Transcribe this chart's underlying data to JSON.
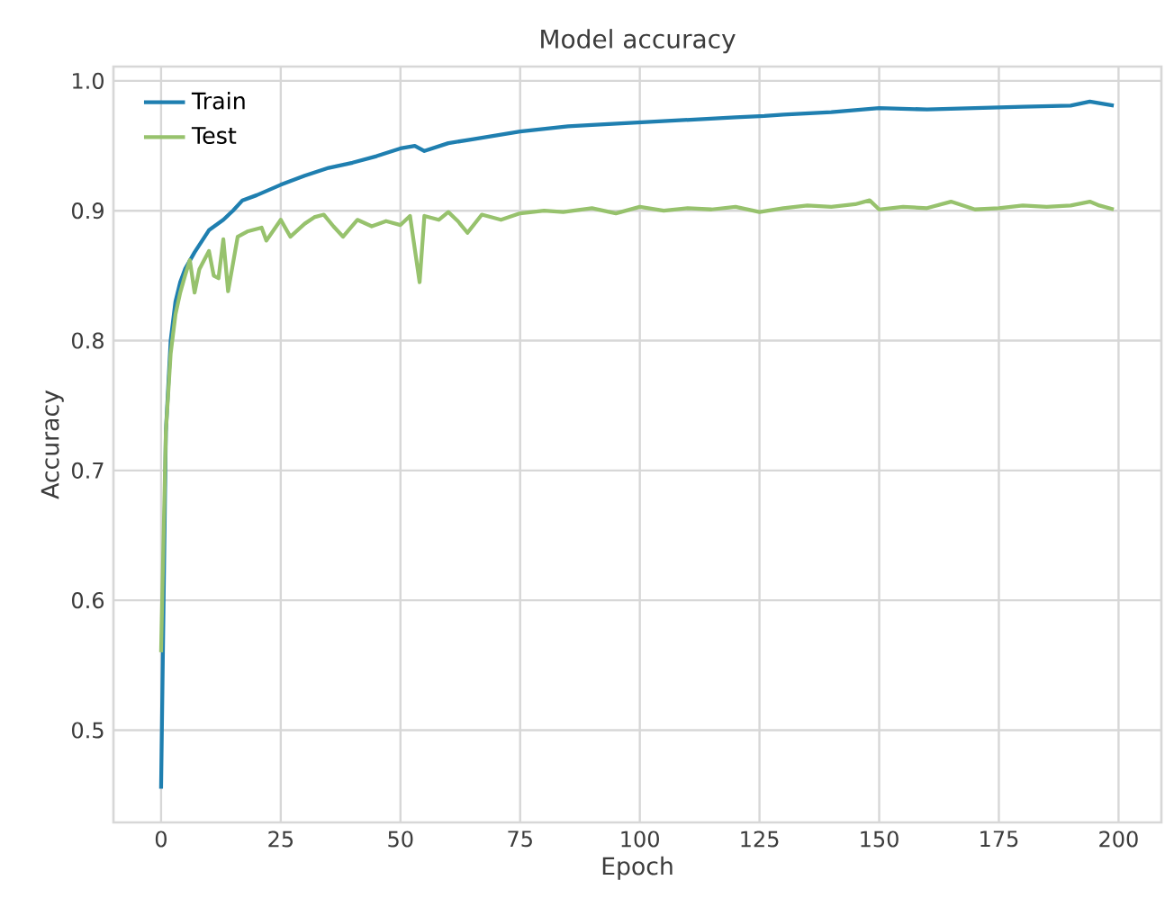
{
  "chart_data": {
    "type": "line",
    "title": "Model accuracy",
    "xlabel": "Epoch",
    "ylabel": "Accuracy",
    "xlim": [
      -9.95,
      208.95
    ],
    "ylim": [
      0.429,
      1.011
    ],
    "xticks": [
      0,
      25,
      50,
      75,
      100,
      125,
      150,
      175,
      200
    ],
    "yticks": [
      0.5,
      0.6,
      0.7,
      0.8,
      0.9,
      {
        "value": 1.0,
        "label": "1.0"
      }
    ],
    "grid": true,
    "legend": "top left",
    "marker": "none",
    "line_style": "solid",
    "series": [
      {
        "name": "Train",
        "color": "#1f7fb0",
        "x": [
          0,
          1,
          2,
          3,
          4,
          5,
          7,
          10,
          13,
          15,
          17,
          20,
          25,
          30,
          35,
          40,
          45,
          50,
          53,
          55,
          60,
          65,
          70,
          75,
          80,
          85,
          90,
          100,
          110,
          120,
          126,
          130,
          140,
          150,
          160,
          170,
          180,
          190,
          194,
          199
        ],
        "values": [
          0.455,
          0.73,
          0.8,
          0.83,
          0.845,
          0.855,
          0.868,
          0.885,
          0.893,
          0.9,
          0.908,
          0.912,
          0.92,
          0.927,
          0.933,
          0.937,
          0.942,
          0.948,
          0.95,
          0.946,
          0.952,
          0.955,
          0.958,
          0.961,
          0.963,
          0.965,
          0.966,
          0.968,
          0.97,
          0.972,
          0.973,
          0.974,
          0.976,
          0.979,
          0.978,
          0.979,
          0.98,
          0.981,
          0.984,
          0.981
        ]
      },
      {
        "name": "Test",
        "color": "#97c26d",
        "x": [
          0,
          1,
          2,
          3,
          4,
          5,
          6,
          7,
          8,
          9,
          10,
          11,
          12,
          13,
          14,
          16,
          18,
          21,
          22,
          25,
          27,
          30,
          32,
          34,
          36,
          38,
          41,
          44,
          47,
          50,
          52,
          54,
          55,
          58,
          60,
          62,
          64,
          67,
          71,
          75,
          80,
          84,
          90,
          95,
          100,
          105,
          110,
          115,
          120,
          125,
          130,
          135,
          140,
          145,
          148,
          150,
          155,
          160,
          165,
          170,
          175,
          180,
          185,
          190,
          194,
          196,
          199
        ],
        "values": [
          0.56,
          0.73,
          0.79,
          0.82,
          0.837,
          0.85,
          0.862,
          0.837,
          0.855,
          0.862,
          0.869,
          0.85,
          0.848,
          0.878,
          0.838,
          0.88,
          0.884,
          0.887,
          0.877,
          0.893,
          0.88,
          0.89,
          0.895,
          0.897,
          0.888,
          0.88,
          0.893,
          0.888,
          0.892,
          0.889,
          0.896,
          0.845,
          0.896,
          0.893,
          0.899,
          0.892,
          0.883,
          0.897,
          0.893,
          0.898,
          0.9,
          0.899,
          0.902,
          0.898,
          0.903,
          0.9,
          0.902,
          0.901,
          0.903,
          0.899,
          0.902,
          0.904,
          0.903,
          0.905,
          0.908,
          0.901,
          0.903,
          0.902,
          0.907,
          0.901,
          0.902,
          0.904,
          0.903,
          0.904,
          0.907,
          0.904,
          0.901
        ]
      }
    ]
  }
}
